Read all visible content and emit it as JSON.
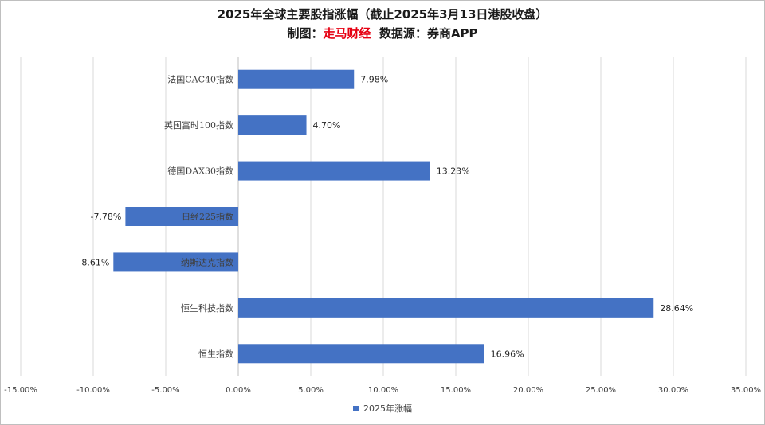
{
  "header": {
    "title": "2025年全球主要股指涨幅（截止2025年3月13日港股收盘）",
    "subtitle_prefix": "制图：",
    "subtitle_brand": "走马财经",
    "subtitle_suffix": "数据源：券商APP"
  },
  "colors": {
    "bar": "#4472c4",
    "brand": "#e60012",
    "grid": "#d9d9d9"
  },
  "chart_data": {
    "type": "bar",
    "orientation": "horizontal",
    "title": "2025年全球主要股指涨幅（截止2025年3月13日港股收盘）",
    "categories": [
      "法国CAC40指数",
      "英国富时100指数",
      "德国DAX30指数",
      "日经225指数",
      "纳斯达克指数",
      "恒生科技指数",
      "恒生指数"
    ],
    "series": [
      {
        "name": "2025年涨幅",
        "values": [
          7.98,
          4.7,
          13.23,
          -7.78,
          -8.61,
          28.64,
          16.96
        ]
      }
    ],
    "value_labels": [
      "7.98%",
      "4.70%",
      "13.23%",
      "-7.78%",
      "-8.61%",
      "28.64%",
      "16.96%"
    ],
    "xlim": [
      -15,
      35
    ],
    "xticks": [
      -15,
      -10,
      -5,
      0,
      5,
      10,
      15,
      20,
      25,
      30,
      35
    ],
    "xtick_labels": [
      "-15.00%",
      "-10.00%",
      "-5.00%",
      "0.00%",
      "5.00%",
      "10.00%",
      "15.00%",
      "20.00%",
      "25.00%",
      "30.00%",
      "35.00%"
    ],
    "grid": true,
    "legend": "bottom"
  }
}
